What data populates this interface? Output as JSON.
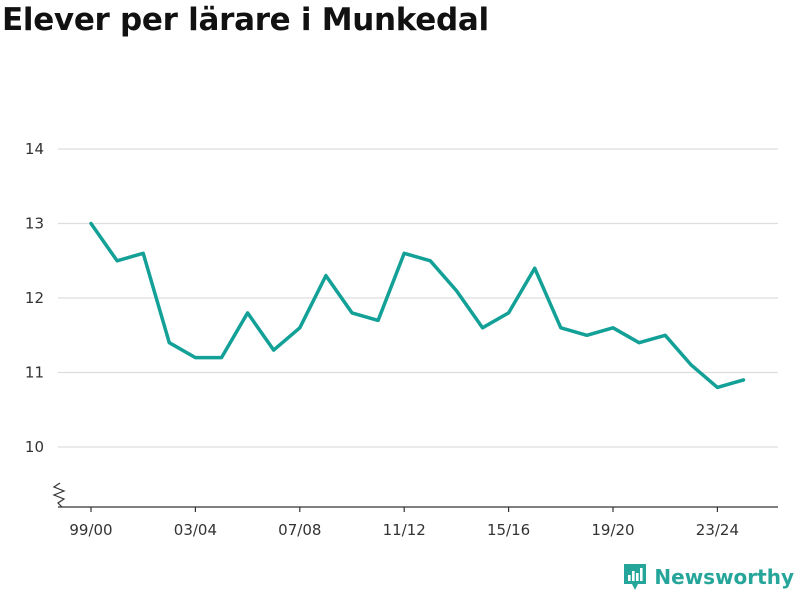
{
  "page": {
    "title": "Elever per lärare i Munkedal"
  },
  "brand": {
    "name": "Newsworthy",
    "color": "#26a69a"
  },
  "colors": {
    "line": "#13a096",
    "grid": "#dddddd",
    "axis": "#333333"
  },
  "chart_data": {
    "type": "line",
    "title": "Elever per lärare i Munkedal",
    "xlabel": "",
    "ylabel": "",
    "x": [
      "99/00",
      "00/01",
      "01/02",
      "02/03",
      "03/04",
      "04/05",
      "05/06",
      "06/07",
      "07/08",
      "08/09",
      "09/10",
      "10/11",
      "11/12",
      "12/13",
      "13/14",
      "14/15",
      "15/16",
      "16/17",
      "17/18",
      "18/19",
      "19/20",
      "20/21",
      "21/22",
      "22/23",
      "23/24",
      "24/25"
    ],
    "x_tick_labels": [
      "99/00",
      "03/04",
      "07/08",
      "11/12",
      "15/16",
      "19/20",
      "23/24"
    ],
    "y_ticks": [
      10,
      11,
      12,
      13,
      14
    ],
    "ylim": [
      9.2,
      14
    ],
    "y_axis_break": true,
    "grid": true,
    "series": [
      {
        "values": [
          13.0,
          12.5,
          12.6,
          11.4,
          11.2,
          11.2,
          11.8,
          11.3,
          11.6,
          12.3,
          11.8,
          11.7,
          12.6,
          12.5,
          12.1,
          11.6,
          11.8,
          12.4,
          11.6,
          11.5,
          11.6,
          11.4,
          11.5,
          11.1,
          10.8,
          10.9
        ]
      }
    ]
  }
}
